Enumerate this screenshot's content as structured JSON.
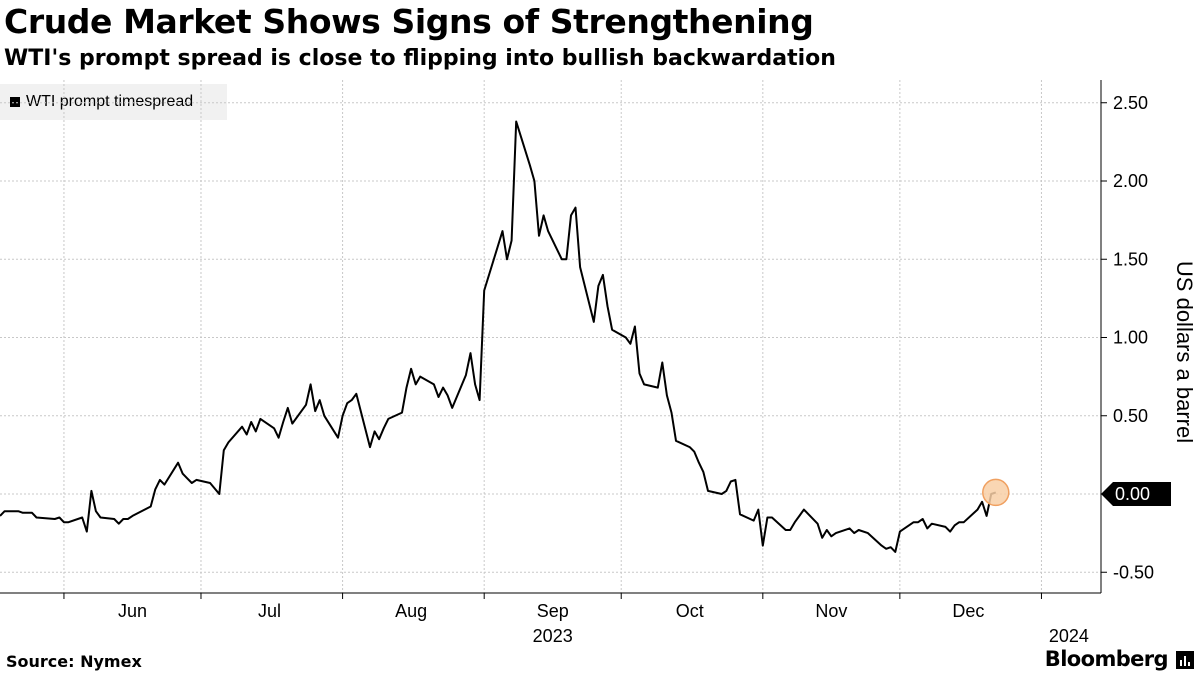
{
  "header": {
    "title": "Crude Market Shows Signs of Strengthening",
    "subtitle": "WTI's prompt spread is close to flipping into bullish backwardation"
  },
  "footer": {
    "source": "Source: Nymex",
    "brand": "Bloomberg",
    "brand_icon": "bloomberg-terminal-icon"
  },
  "colors": {
    "line": "#000000",
    "grid": "#c8c8c8",
    "highlight_fill": "#f8cfa6",
    "highlight_stroke": "#f0a060",
    "label_bg": "#000000",
    "label_text": "#ffffff",
    "legend_bg": "#f1f1f1"
  },
  "chart_data": {
    "type": "line",
    "title": "Crude Market Shows Signs of Strengthening",
    "subtitle": "WTI's prompt spread is close to flipping into bullish backwardation",
    "ylabel": "US dollars a barrel",
    "ylim": [
      -0.5,
      2.5
    ],
    "yticks": [
      -0.5,
      0,
      0.5,
      1,
      1.5,
      2,
      2.5
    ],
    "ytick_labels": [
      "-0.50",
      "0.00",
      "0.50",
      "1.00",
      "1.50",
      "2.00",
      "2.50"
    ],
    "highlight_tick": "0.00",
    "grid": true,
    "legend_position": "top-left",
    "x_axis": {
      "start": "2023-05-18",
      "end": "2024-01-09",
      "month_labels": [
        {
          "label": "Jun",
          "date": "2023-06-16"
        },
        {
          "label": "Jul",
          "date": "2023-07-16"
        },
        {
          "label": "Aug",
          "date": "2023-08-16"
        },
        {
          "label": "Sep",
          "date": "2023-09-16"
        },
        {
          "label": "Oct",
          "date": "2023-10-16"
        },
        {
          "label": "Nov",
          "date": "2023-11-16"
        },
        {
          "label": "Dec",
          "date": "2023-12-16"
        }
      ],
      "month_boundaries": [
        "2023-06-01",
        "2023-07-01",
        "2023-08-01",
        "2023-09-01",
        "2023-10-01",
        "2023-11-01",
        "2023-12-01",
        "2024-01-01"
      ],
      "year_labels": [
        {
          "label": "2023",
          "date": "2023-09-16"
        },
        {
          "label": "2024",
          "date": "2024-01-07"
        }
      ]
    },
    "series": [
      {
        "name": "WTI prompt timespread",
        "points": [
          [
            "2023-05-18",
            -0.14
          ],
          [
            "2023-05-19",
            -0.11
          ],
          [
            "2023-05-22",
            -0.11
          ],
          [
            "2023-05-23",
            -0.12
          ],
          [
            "2023-05-24",
            -0.12
          ],
          [
            "2023-05-25",
            -0.12
          ],
          [
            "2023-05-26",
            -0.15
          ],
          [
            "2023-05-30",
            -0.16
          ],
          [
            "2023-05-31",
            -0.15
          ],
          [
            "2023-06-01",
            -0.18
          ],
          [
            "2023-06-02",
            -0.18
          ],
          [
            "2023-06-05",
            -0.15
          ],
          [
            "2023-06-06",
            -0.24
          ],
          [
            "2023-06-07",
            0.02
          ],
          [
            "2023-06-08",
            -0.11
          ],
          [
            "2023-06-09",
            -0.15
          ],
          [
            "2023-06-12",
            -0.16
          ],
          [
            "2023-06-13",
            -0.19
          ],
          [
            "2023-06-14",
            -0.16
          ],
          [
            "2023-06-15",
            -0.16
          ],
          [
            "2023-06-16",
            -0.14
          ],
          [
            "2023-06-20",
            -0.08
          ],
          [
            "2023-06-21",
            0.03
          ],
          [
            "2023-06-22",
            0.09
          ],
          [
            "2023-06-23",
            0.06
          ],
          [
            "2023-06-26",
            0.2
          ],
          [
            "2023-06-27",
            0.13
          ],
          [
            "2023-06-28",
            0.1
          ],
          [
            "2023-06-29",
            0.07
          ],
          [
            "2023-06-30",
            0.09
          ],
          [
            "2023-07-03",
            0.07
          ],
          [
            "2023-07-05",
            0.0
          ],
          [
            "2023-07-06",
            0.28
          ],
          [
            "2023-07-07",
            0.33
          ],
          [
            "2023-07-10",
            0.43
          ],
          [
            "2023-07-11",
            0.38
          ],
          [
            "2023-07-12",
            0.46
          ],
          [
            "2023-07-13",
            0.4
          ],
          [
            "2023-07-14",
            0.48
          ],
          [
            "2023-07-17",
            0.42
          ],
          [
            "2023-07-18",
            0.36
          ],
          [
            "2023-07-19",
            0.46
          ],
          [
            "2023-07-20",
            0.55
          ],
          [
            "2023-07-21",
            0.45
          ],
          [
            "2023-07-24",
            0.57
          ],
          [
            "2023-07-25",
            0.7
          ],
          [
            "2023-07-26",
            0.53
          ],
          [
            "2023-07-27",
            0.6
          ],
          [
            "2023-07-28",
            0.5
          ],
          [
            "2023-07-31",
            0.36
          ],
          [
            "2023-08-01",
            0.5
          ],
          [
            "2023-08-02",
            0.58
          ],
          [
            "2023-08-03",
            0.6
          ],
          [
            "2023-08-04",
            0.64
          ],
          [
            "2023-08-07",
            0.3
          ],
          [
            "2023-08-08",
            0.4
          ],
          [
            "2023-08-09",
            0.35
          ],
          [
            "2023-08-10",
            0.42
          ],
          [
            "2023-08-11",
            0.48
          ],
          [
            "2023-08-14",
            0.52
          ],
          [
            "2023-08-15",
            0.68
          ],
          [
            "2023-08-16",
            0.8
          ],
          [
            "2023-08-17",
            0.7
          ],
          [
            "2023-08-18",
            0.75
          ],
          [
            "2023-08-21",
            0.7
          ],
          [
            "2023-08-22",
            0.62
          ],
          [
            "2023-08-23",
            0.68
          ],
          [
            "2023-08-24",
            0.63
          ],
          [
            "2023-08-25",
            0.55
          ],
          [
            "2023-08-28",
            0.76
          ],
          [
            "2023-08-29",
            0.9
          ],
          [
            "2023-08-30",
            0.7
          ],
          [
            "2023-08-31",
            0.6
          ],
          [
            "2023-09-01",
            1.3
          ],
          [
            "2023-09-05",
            1.68
          ],
          [
            "2023-09-06",
            1.5
          ],
          [
            "2023-09-07",
            1.62
          ],
          [
            "2023-09-08",
            2.38
          ],
          [
            "2023-09-11",
            2.1
          ],
          [
            "2023-09-12",
            2.0
          ],
          [
            "2023-09-13",
            1.65
          ],
          [
            "2023-09-14",
            1.78
          ],
          [
            "2023-09-15",
            1.68
          ],
          [
            "2023-09-18",
            1.5
          ],
          [
            "2023-09-19",
            1.5
          ],
          [
            "2023-09-20",
            1.78
          ],
          [
            "2023-09-21",
            1.83
          ],
          [
            "2023-09-22",
            1.45
          ],
          [
            "2023-09-25",
            1.1
          ],
          [
            "2023-09-26",
            1.33
          ],
          [
            "2023-09-27",
            1.4
          ],
          [
            "2023-09-28",
            1.2
          ],
          [
            "2023-09-29",
            1.05
          ],
          [
            "2023-10-02",
            1.0
          ],
          [
            "2023-10-03",
            0.96
          ],
          [
            "2023-10-04",
            1.07
          ],
          [
            "2023-10-05",
            0.77
          ],
          [
            "2023-10-06",
            0.7
          ],
          [
            "2023-10-09",
            0.68
          ],
          [
            "2023-10-10",
            0.84
          ],
          [
            "2023-10-11",
            0.63
          ],
          [
            "2023-10-12",
            0.52
          ],
          [
            "2023-10-13",
            0.34
          ],
          [
            "2023-10-16",
            0.3
          ],
          [
            "2023-10-17",
            0.27
          ],
          [
            "2023-10-18",
            0.2
          ],
          [
            "2023-10-19",
            0.14
          ],
          [
            "2023-10-20",
            0.02
          ],
          [
            "2023-10-23",
            0.0
          ],
          [
            "2023-10-24",
            0.02
          ],
          [
            "2023-10-25",
            0.08
          ],
          [
            "2023-10-26",
            0.09
          ],
          [
            "2023-10-27",
            -0.13
          ],
          [
            "2023-10-30",
            -0.17
          ],
          [
            "2023-10-31",
            -0.1
          ],
          [
            "2023-11-01",
            -0.33
          ],
          [
            "2023-11-02",
            -0.15
          ],
          [
            "2023-11-03",
            -0.15
          ],
          [
            "2023-11-06",
            -0.23
          ],
          [
            "2023-11-07",
            -0.23
          ],
          [
            "2023-11-08",
            -0.18
          ],
          [
            "2023-11-09",
            -0.14
          ],
          [
            "2023-11-10",
            -0.1
          ],
          [
            "2023-11-13",
            -0.19
          ],
          [
            "2023-11-14",
            -0.28
          ],
          [
            "2023-11-15",
            -0.23
          ],
          [
            "2023-11-16",
            -0.27
          ],
          [
            "2023-11-17",
            -0.25
          ],
          [
            "2023-11-20",
            -0.22
          ],
          [
            "2023-11-21",
            -0.25
          ],
          [
            "2023-11-22",
            -0.23
          ],
          [
            "2023-11-24",
            -0.25
          ],
          [
            "2023-11-27",
            -0.33
          ],
          [
            "2023-11-28",
            -0.35
          ],
          [
            "2023-11-29",
            -0.34
          ],
          [
            "2023-11-30",
            -0.37
          ],
          [
            "2023-12-01",
            -0.24
          ],
          [
            "2023-12-04",
            -0.18
          ],
          [
            "2023-12-05",
            -0.18
          ],
          [
            "2023-12-06",
            -0.16
          ],
          [
            "2023-12-07",
            -0.22
          ],
          [
            "2023-12-08",
            -0.19
          ],
          [
            "2023-12-11",
            -0.21
          ],
          [
            "2023-12-12",
            -0.24
          ],
          [
            "2023-12-13",
            -0.2
          ],
          [
            "2023-12-14",
            -0.18
          ],
          [
            "2023-12-15",
            -0.18
          ],
          [
            "2023-12-18",
            -0.1
          ],
          [
            "2023-12-19",
            -0.05
          ],
          [
            "2023-12-20",
            -0.14
          ],
          [
            "2023-12-21",
            0.0
          ],
          [
            "2023-12-22",
            0.01
          ]
        ]
      }
    ]
  }
}
